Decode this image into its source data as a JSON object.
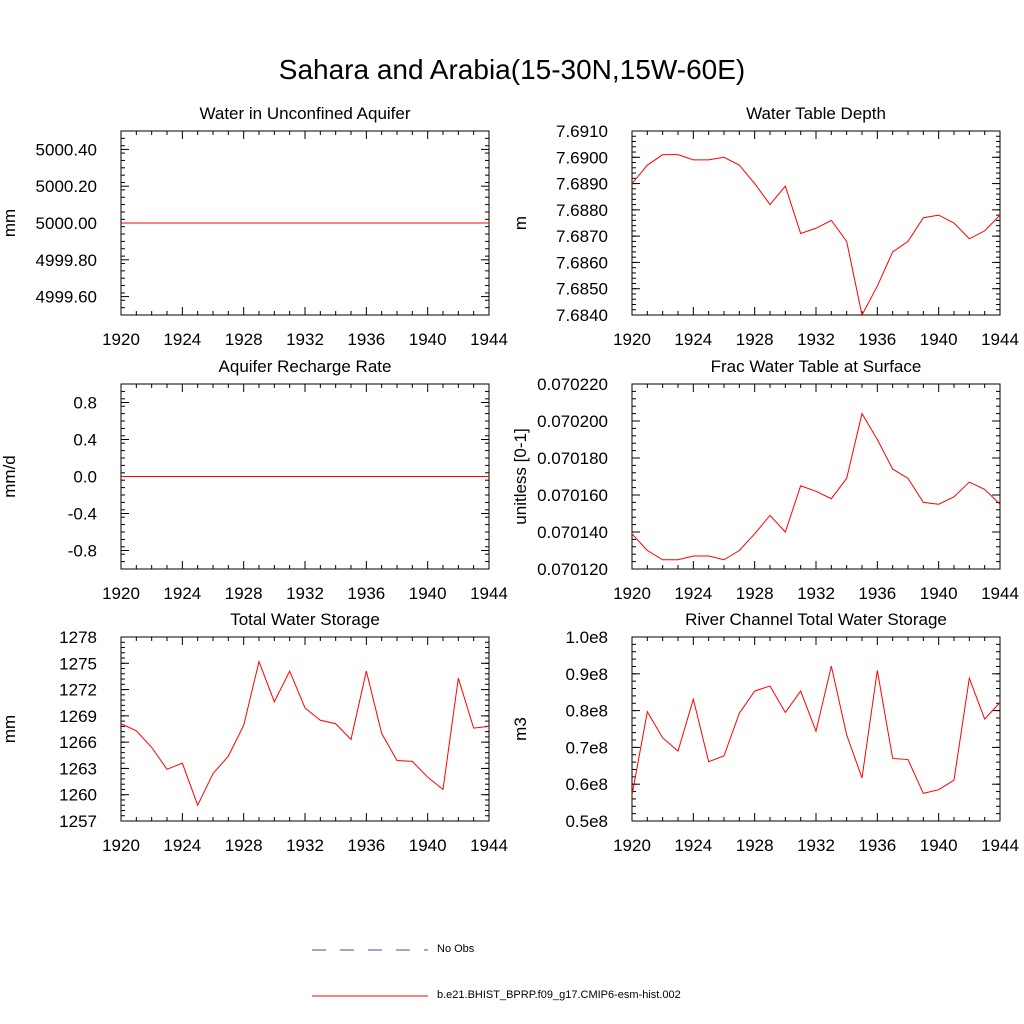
{
  "main_title": "Sahara and Arabia(15-30N,15W-60E)",
  "colors": {
    "model": "#ff0000",
    "obs": "#4a4aa8",
    "axis": "#000000"
  },
  "legend": {
    "obs_label": "No Obs",
    "model_label": "b.e21.BHIST_BPRP.f09_g17.CMIP6-esm-hist.002"
  },
  "chart_data": [
    {
      "type": "line",
      "title": "Water in Unconfined Aquifer",
      "ylabel": "mm",
      "xlim": [
        1920,
        1944
      ],
      "ylim": [
        4999.5,
        5000.5
      ],
      "xticks": [
        "1920",
        "1924",
        "1928",
        "1932",
        "1936",
        "1940",
        "1944"
      ],
      "yticks": [
        {
          "v": 4999.6,
          "label": "4999.60"
        },
        {
          "v": 4999.8,
          "label": "4999.80"
        },
        {
          "v": 5000.0,
          "label": "5000.00"
        },
        {
          "v": 5000.2,
          "label": "5000.20"
        },
        {
          "v": 5000.4,
          "label": "5000.40"
        }
      ],
      "x": [
        1920,
        1944
      ],
      "values": [
        5000.0,
        5000.0
      ]
    },
    {
      "type": "line",
      "title": "Water Table Depth",
      "ylabel": "m",
      "xlim": [
        1920,
        1944
      ],
      "ylim": [
        7.684,
        7.691
      ],
      "xticks": [
        "1920",
        "1924",
        "1928",
        "1932",
        "1936",
        "1940",
        "1944"
      ],
      "yticks": [
        {
          "v": 7.684,
          "label": "7.6840"
        },
        {
          "v": 7.685,
          "label": "7.6850"
        },
        {
          "v": 7.686,
          "label": "7.6860"
        },
        {
          "v": 7.687,
          "label": "7.6870"
        },
        {
          "v": 7.688,
          "label": "7.6880"
        },
        {
          "v": 7.689,
          "label": "7.6890"
        },
        {
          "v": 7.69,
          "label": "7.6900"
        },
        {
          "v": 7.691,
          "label": "7.6910"
        }
      ],
      "x": [
        1920,
        1921,
        1922,
        1923,
        1924,
        1925,
        1926,
        1927,
        1928,
        1929,
        1930,
        1931,
        1932,
        1933,
        1934,
        1935,
        1936,
        1937,
        1938,
        1939,
        1940,
        1941,
        1942,
        1943,
        1944
      ],
      "values": [
        7.689,
        7.6897,
        7.6901,
        7.6901,
        7.6899,
        7.6899,
        7.69,
        7.6897,
        7.689,
        7.6882,
        7.6889,
        7.6871,
        7.6873,
        7.6876,
        7.6868,
        7.684,
        7.6851,
        7.6864,
        7.6868,
        7.6877,
        7.6878,
        7.6875,
        7.6869,
        7.6872,
        7.6878
      ]
    },
    {
      "type": "line",
      "title": "Aquifer Recharge Rate",
      "ylabel": "mm/d",
      "xlim": [
        1920,
        1944
      ],
      "ylim": [
        -1.0,
        1.0
      ],
      "xticks": [
        "1920",
        "1924",
        "1928",
        "1932",
        "1936",
        "1940",
        "1944"
      ],
      "yticks": [
        {
          "v": -0.8,
          "label": "-0.8"
        },
        {
          "v": -0.4,
          "label": "-0.4"
        },
        {
          "v": 0.0,
          "label": "0.0"
        },
        {
          "v": 0.4,
          "label": "0.4"
        },
        {
          "v": 0.8,
          "label": "0.8"
        }
      ],
      "x": [
        1920,
        1944
      ],
      "values": [
        0.0,
        0.0
      ]
    },
    {
      "type": "line",
      "title": "Frac Water Table at Surface",
      "ylabel": "unitless [0-1]",
      "xlim": [
        1920,
        1944
      ],
      "ylim": [
        0.07012,
        0.07022
      ],
      "xticks": [
        "1920",
        "1924",
        "1928",
        "1932",
        "1936",
        "1940",
        "1944"
      ],
      "yticks": [
        {
          "v": 0.07012,
          "label": "0.070120"
        },
        {
          "v": 0.07014,
          "label": "0.070140"
        },
        {
          "v": 0.07016,
          "label": "0.070160"
        },
        {
          "v": 0.07018,
          "label": "0.070180"
        },
        {
          "v": 0.0702,
          "label": "0.070200"
        },
        {
          "v": 0.07022,
          "label": "0.070220"
        }
      ],
      "x": [
        1920,
        1921,
        1922,
        1923,
        1924,
        1925,
        1926,
        1927,
        1928,
        1929,
        1930,
        1931,
        1932,
        1933,
        1934,
        1935,
        1936,
        1937,
        1938,
        1939,
        1940,
        1941,
        1942,
        1943,
        1944
      ],
      "values": [
        0.070139,
        0.07013,
        0.070125,
        0.070125,
        0.070127,
        0.070127,
        0.070125,
        0.07013,
        0.070139,
        0.070149,
        0.07014,
        0.070165,
        0.070162,
        0.070158,
        0.070169,
        0.070204,
        0.07019,
        0.070174,
        0.070169,
        0.070156,
        0.070155,
        0.070159,
        0.070167,
        0.070163,
        0.070155
      ]
    },
    {
      "type": "line",
      "title": "Total Water Storage",
      "ylabel": "mm",
      "xlim": [
        1920,
        1944
      ],
      "ylim": [
        1257,
        1278
      ],
      "xticks": [
        "1920",
        "1924",
        "1928",
        "1932",
        "1936",
        "1940",
        "1944"
      ],
      "yticks": [
        {
          "v": 1257,
          "label": "1257"
        },
        {
          "v": 1260,
          "label": "1260"
        },
        {
          "v": 1263,
          "label": "1263"
        },
        {
          "v": 1266,
          "label": "1266"
        },
        {
          "v": 1269,
          "label": "1269"
        },
        {
          "v": 1272,
          "label": "1272"
        },
        {
          "v": 1275,
          "label": "1275"
        },
        {
          "v": 1278,
          "label": "1278"
        }
      ],
      "x": [
        1920,
        1921,
        1922,
        1923,
        1924,
        1925,
        1926,
        1927,
        1928,
        1929,
        1930,
        1931,
        1932,
        1933,
        1934,
        1935,
        1936,
        1937,
        1938,
        1939,
        1940,
        1941,
        1942,
        1943,
        1944
      ],
      "values": [
        1268.1,
        1267.3,
        1265.4,
        1262.9,
        1263.6,
        1258.8,
        1262.4,
        1264.4,
        1267.9,
        1275.2,
        1270.6,
        1274.1,
        1269.9,
        1268.5,
        1268.1,
        1266.3,
        1274.1,
        1267.0,
        1263.9,
        1263.8,
        1262.0,
        1260.6,
        1273.3,
        1267.6,
        1267.8
      ]
    },
    {
      "type": "line",
      "title": "River Channel Total Water Storage",
      "ylabel": "m3",
      "xlim": [
        1920,
        1944
      ],
      "ylim": [
        50000000,
        100000000
      ],
      "xticks": [
        "1920",
        "1924",
        "1928",
        "1932",
        "1936",
        "1940",
        "1944"
      ],
      "yticks": [
        {
          "v": 50000000,
          "label": "0.5e8"
        },
        {
          "v": 60000000,
          "label": "0.6e8"
        },
        {
          "v": 70000000,
          "label": "0.7e8"
        },
        {
          "v": 80000000,
          "label": "0.8e8"
        },
        {
          "v": 90000000,
          "label": "0.9e8"
        },
        {
          "v": 100000000,
          "label": "1.0e8"
        }
      ],
      "x": [
        1920,
        1921,
        1922,
        1923,
        1924,
        1925,
        1926,
        1927,
        1928,
        1929,
        1930,
        1931,
        1932,
        1933,
        1934,
        1935,
        1936,
        1937,
        1938,
        1939,
        1940,
        1941,
        1942,
        1943,
        1944
      ],
      "values": [
        57000000,
        79700000,
        72600000,
        69000000,
        83100000,
        66100000,
        67700000,
        79300000,
        85300000,
        86700000,
        79500000,
        85300000,
        74400000,
        92100000,
        73400000,
        61700000,
        90900000,
        67000000,
        66700000,
        57500000,
        58500000,
        61100000,
        88800000,
        77700000,
        82200000
      ]
    }
  ]
}
